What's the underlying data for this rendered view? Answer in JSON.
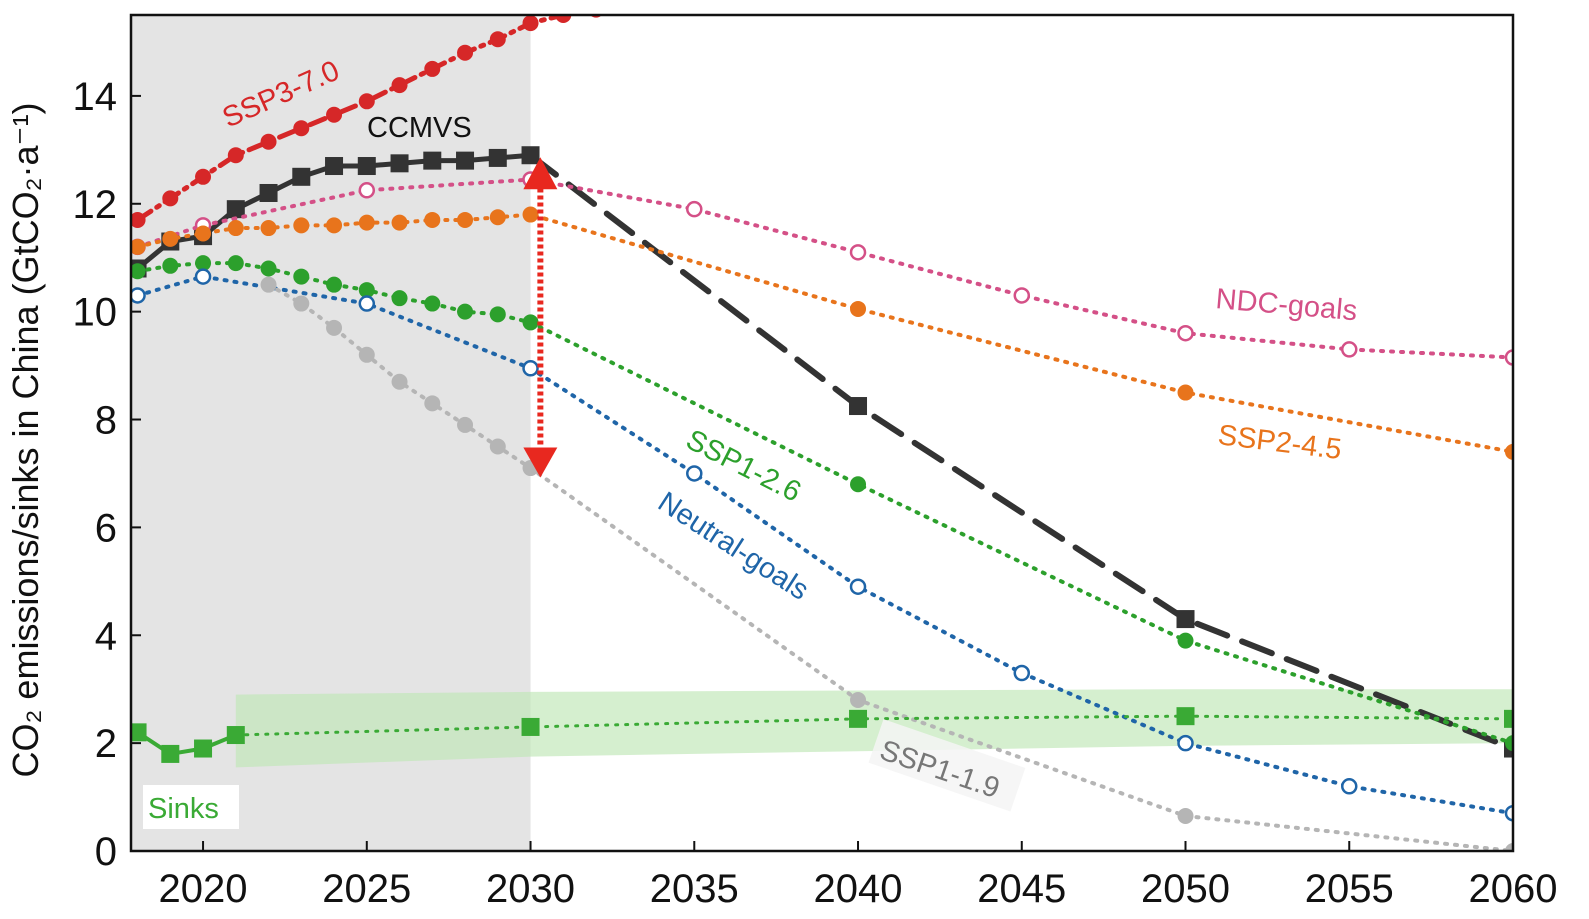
{
  "chart_data": {
    "type": "line",
    "ylabel": "CO₂ emissions/sinks in China (GtCO₂·a⁻¹)",
    "xlim": [
      2017.8,
      2060
    ],
    "ylim": [
      0,
      15.5
    ],
    "x_ticks": [
      2020,
      2025,
      2030,
      2035,
      2040,
      2045,
      2050,
      2055,
      2060
    ],
    "y_ticks": [
      0,
      2,
      4,
      6,
      8,
      10,
      12,
      14
    ],
    "shaded_region": {
      "x_start": 2017.8,
      "x_end": 2030,
      "color": "#e4e4e4"
    },
    "series": [
      {
        "name": "SSP3-7.0",
        "color": "#d62728",
        "style": "dashdot",
        "marker": "filled-circle",
        "x": [
          2018,
          2019,
          2020,
          2021,
          2022,
          2023,
          2024,
          2025,
          2026,
          2027,
          2028,
          2029,
          2030,
          2031,
          2032
        ],
        "y": [
          11.7,
          12.1,
          12.5,
          12.9,
          13.15,
          13.4,
          13.65,
          13.9,
          14.2,
          14.5,
          14.8,
          15.05,
          15.35,
          15.5,
          15.6
        ]
      },
      {
        "name": "CCMVS",
        "color": "#333333",
        "style": "solid-then-dashed",
        "marker": "square",
        "x": [
          2018,
          2019,
          2020,
          2021,
          2022,
          2023,
          2024,
          2025,
          2026,
          2027,
          2028,
          2029,
          2030,
          2040,
          2050,
          2060
        ],
        "y": [
          10.8,
          11.3,
          11.4,
          11.9,
          12.2,
          12.5,
          12.7,
          12.7,
          12.75,
          12.8,
          12.8,
          12.85,
          12.9,
          8.25,
          4.3,
          1.9
        ]
      },
      {
        "name": "NDC-goals",
        "color": "#d45087",
        "style": "dotted",
        "marker": "open-circle",
        "x": [
          2018,
          2020,
          2025,
          2030,
          2035,
          2040,
          2045,
          2050,
          2055,
          2060
        ],
        "y": [
          11.2,
          11.6,
          12.25,
          12.45,
          11.9,
          11.1,
          10.3,
          9.6,
          9.3,
          9.15
        ]
      },
      {
        "name": "SSP2-4.5",
        "color": "#e8741c",
        "style": "dotted",
        "marker": "filled-circle",
        "x": [
          2018,
          2019,
          2020,
          2021,
          2022,
          2023,
          2024,
          2025,
          2026,
          2027,
          2028,
          2029,
          2030,
          2040,
          2050,
          2060
        ],
        "y": [
          11.2,
          11.35,
          11.45,
          11.55,
          11.55,
          11.6,
          11.6,
          11.65,
          11.65,
          11.7,
          11.7,
          11.75,
          11.8,
          10.05,
          8.5,
          7.4
        ]
      },
      {
        "name": "SSP1-2.6",
        "color": "#2ca02c",
        "style": "dotted",
        "marker": "filled-circle",
        "x": [
          2018,
          2019,
          2020,
          2021,
          2022,
          2023,
          2024,
          2025,
          2026,
          2027,
          2028,
          2029,
          2030,
          2040,
          2050,
          2060
        ],
        "y": [
          10.75,
          10.85,
          10.9,
          10.9,
          10.8,
          10.65,
          10.5,
          10.4,
          10.25,
          10.15,
          10.0,
          9.95,
          9.8,
          6.8,
          3.9,
          2.0
        ]
      },
      {
        "name": "Neutral-goals",
        "color": "#1f65a8",
        "style": "dotted",
        "marker": "open-circle",
        "x": [
          2018,
          2020,
          2025,
          2030,
          2035,
          2040,
          2045,
          2050,
          2055,
          2060
        ],
        "y": [
          10.3,
          10.65,
          10.15,
          8.95,
          7.0,
          4.9,
          3.3,
          2.0,
          1.2,
          0.7
        ]
      },
      {
        "name": "SSP1-1.9",
        "color": "#b5b5b5",
        "style": "dotted",
        "marker": "filled-circle",
        "x": [
          2022,
          2023,
          2024,
          2025,
          2026,
          2027,
          2028,
          2029,
          2030,
          2040,
          2050,
          2060
        ],
        "y": [
          10.5,
          10.15,
          9.7,
          9.2,
          8.7,
          8.3,
          7.9,
          7.5,
          7.1,
          2.8,
          0.65,
          0.0
        ]
      },
      {
        "name": "Sinks",
        "color": "#3aaa35",
        "style": "solid-then-dotted",
        "marker": "square",
        "x": [
          2018,
          2019,
          2020,
          2021,
          2030,
          2040,
          2050,
          2060
        ],
        "y": [
          2.2,
          1.8,
          1.9,
          2.15,
          2.3,
          2.45,
          2.5,
          2.45
        ],
        "band_upper": [
          2.9,
          2.95,
          3.0,
          3.0
        ],
        "band_lower": [
          1.55,
          1.75,
          1.95,
          2.0
        ],
        "band_x": [
          2021,
          2030,
          2050,
          2060
        ]
      }
    ],
    "arrow": {
      "x": 2030.3,
      "y_from": 7.0,
      "y_to": 12.9,
      "color": "#e8281f"
    }
  },
  "labels": {
    "ssp370": "SSP3-7.0",
    "ccmvs": "CCMVS",
    "ndc": "NDC-goals",
    "ssp245": "SSP2-4.5",
    "ssp126": "SSP1-2.6",
    "neutral": "Neutral-goals",
    "ssp119": "SSP1-1.9",
    "sinks": "Sinks"
  }
}
